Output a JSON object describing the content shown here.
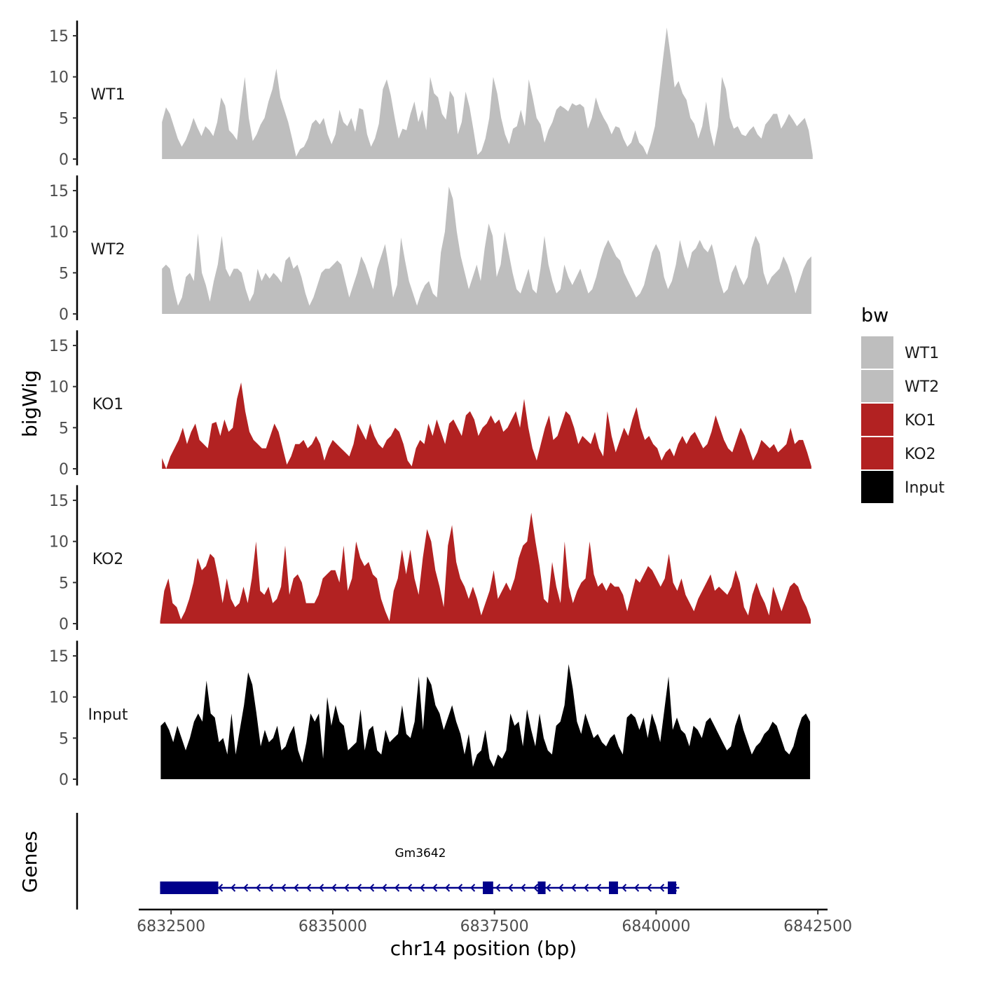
{
  "chart_data": {
    "type": "area",
    "ylabel": "bigWig",
    "xlabel": "chr14 position (bp)",
    "gene_panel_label": "Genes",
    "ylim": [
      0,
      16
    ],
    "xlim": [
      6832000,
      6842650
    ],
    "yticks": [
      0,
      5,
      10,
      15
    ],
    "xticks": [
      6832500,
      6835000,
      6837500,
      6840000,
      6842500
    ],
    "xtick_labels": [
      "6832500",
      "6835000",
      "6837500",
      "6840000",
      "6842500"
    ],
    "legend": {
      "title": "bw",
      "position": "right",
      "entries": [
        {
          "name": "WT1",
          "color": "#bebebe"
        },
        {
          "name": "WT2",
          "color": "#bebebe"
        },
        {
          "name": "KO1",
          "color": "#b22222"
        },
        {
          "name": "KO2",
          "color": "#b22222"
        },
        {
          "name": "Input",
          "color": "#000000"
        }
      ]
    },
    "series": [
      {
        "name": "WT1",
        "color": "#bebebe",
        "x_start": 6832360,
        "x_end": 6842420,
        "values": [
          4.5,
          6.3,
          5.5,
          4.0,
          2.5,
          1.5,
          2.3,
          3.5,
          5.0,
          3.8,
          2.8,
          4.0,
          3.5,
          2.8,
          4.5,
          7.5,
          6.5,
          3.5,
          3.0,
          2.3,
          6.5,
          10.0,
          5.0,
          2.2,
          3.0,
          4.2,
          5.0,
          7.0,
          8.5,
          11.0,
          7.5,
          6.0,
          4.5,
          2.5,
          0.3,
          1.2,
          1.5,
          2.5,
          4.3,
          4.8,
          4.2,
          5.0,
          3.0,
          1.8,
          3.0,
          6.0,
          4.5,
          4.0,
          5.0,
          3.3,
          6.2,
          6.0,
          3.0,
          1.5,
          2.5,
          4.3,
          8.5,
          9.7,
          7.8,
          5.0,
          2.5,
          3.7,
          3.5,
          5.5,
          7.0,
          4.5,
          6.0,
          3.5,
          10.0,
          8.0,
          7.5,
          5.5,
          4.8,
          8.3,
          7.5,
          3.0,
          4.5,
          8.2,
          6.3,
          3.5,
          0.5,
          1.0,
          2.5,
          5.0,
          10.0,
          8.0,
          5.0,
          3.0,
          1.8,
          3.7,
          4.0,
          6.0,
          4.0,
          9.7,
          7.5,
          5.0,
          4.2,
          2.0,
          3.5,
          4.5,
          6.0,
          6.5,
          6.2,
          5.8,
          6.8,
          6.5,
          6.7,
          6.3,
          3.7,
          5.0,
          7.5,
          6.0,
          5.0,
          4.2,
          3.0,
          4.0,
          3.8,
          2.5,
          1.5,
          2.0,
          3.5,
          2.0,
          1.5,
          0.5,
          2.0,
          4.0,
          8.0,
          12.0,
          16.0,
          12.5,
          8.7,
          9.5,
          8.0,
          7.2,
          5.0,
          4.3,
          2.5,
          4.0,
          7.0,
          3.5,
          1.5,
          4.0,
          10.0,
          8.5,
          5.0,
          3.7,
          4.0,
          3.0,
          2.8,
          3.5,
          4.0,
          3.0,
          2.5,
          4.2,
          4.8,
          5.5,
          5.5,
          3.7,
          4.5,
          5.5,
          4.8,
          4.0,
          4.5,
          5.0,
          3.5,
          0.5
        ]
      },
      {
        "name": "WT2",
        "color": "#bebebe",
        "x_start": 6832360,
        "x_end": 6842400,
        "values": [
          5.5,
          6.0,
          5.5,
          3.0,
          1.0,
          2.0,
          4.5,
          5.0,
          4.0,
          9.8,
          5.0,
          3.5,
          1.5,
          4.0,
          6.0,
          9.5,
          5.5,
          4.5,
          5.5,
          5.5,
          5.0,
          3.0,
          1.5,
          2.5,
          5.5,
          4.0,
          5.0,
          4.3,
          5.0,
          4.5,
          3.8,
          6.5,
          7.0,
          5.5,
          6.0,
          4.5,
          2.5,
          1.0,
          2.0,
          3.5,
          5.0,
          5.5,
          5.5,
          6.0,
          6.5,
          6.0,
          4.0,
          2.0,
          3.5,
          5.0,
          7.0,
          6.0,
          4.5,
          3.0,
          5.5,
          7.0,
          8.5,
          5.5,
          2.0,
          3.5,
          9.3,
          6.5,
          4.0,
          2.5,
          1.0,
          2.5,
          3.5,
          4.0,
          2.5,
          2.0,
          7.5,
          10.0,
          15.5,
          14.0,
          10.0,
          7.0,
          5.0,
          3.0,
          4.5,
          6.0,
          4.0,
          8.0,
          11.0,
          9.5,
          4.5,
          6.0,
          10.0,
          7.5,
          5.0,
          3.0,
          2.5,
          4.0,
          5.5,
          3.0,
          2.5,
          5.5,
          9.5,
          6.0,
          4.0,
          2.5,
          3.0,
          6.0,
          4.5,
          3.5,
          4.5,
          5.5,
          4.0,
          2.5,
          3.0,
          4.5,
          6.5,
          8.0,
          9.0,
          8.0,
          7.0,
          6.5,
          5.0,
          4.0,
          3.0,
          2.0,
          2.5,
          3.5,
          5.5,
          7.5,
          8.5,
          7.5,
          4.5,
          3.0,
          4.0,
          6.0,
          9.0,
          7.0,
          5.5,
          7.5,
          8.0,
          9.0,
          8.0,
          7.5,
          8.5,
          6.5,
          4.0,
          2.5,
          3.0,
          5.0,
          6.0,
          4.5,
          3.5,
          4.5,
          8.0,
          9.5,
          8.5,
          5.0,
          3.5,
          4.5,
          5.0,
          5.5,
          7.0,
          6.0,
          4.5,
          2.5,
          4.0,
          5.5,
          6.5,
          7.0
        ]
      },
      {
        "name": "KO1",
        "color": "#b22222",
        "x_start": 6832360,
        "x_end": 6842400,
        "values": [
          1.3,
          0.0,
          1.5,
          2.5,
          3.5,
          5.0,
          3.0,
          4.5,
          5.5,
          3.5,
          3.0,
          2.5,
          5.5,
          5.7,
          4.0,
          6.0,
          4.5,
          5.0,
          8.5,
          10.5,
          7.0,
          4.5,
          3.5,
          3.0,
          2.5,
          2.5,
          4.0,
          5.5,
          4.5,
          2.5,
          0.5,
          1.5,
          3.0,
          3.0,
          3.5,
          2.5,
          3.0,
          4.0,
          3.0,
          1.0,
          2.5,
          3.5,
          3.0,
          2.5,
          2.0,
          1.5,
          3.0,
          5.5,
          4.5,
          3.5,
          5.5,
          4.0,
          3.0,
          2.5,
          3.5,
          4.0,
          5.0,
          4.5,
          3.0,
          1.0,
          0.3,
          2.5,
          3.5,
          3.0,
          5.5,
          4.0,
          6.0,
          4.5,
          3.0,
          5.5,
          6.0,
          5.0,
          4.0,
          6.5,
          7.0,
          6.0,
          4.0,
          5.0,
          5.5,
          6.5,
          5.5,
          6.0,
          4.5,
          5.0,
          6.0,
          7.0,
          5.0,
          8.5,
          5.0,
          2.5,
          1.0,
          3.0,
          5.0,
          6.5,
          3.5,
          4.0,
          5.5,
          7.0,
          6.5,
          5.0,
          3.0,
          4.0,
          3.5,
          3.0,
          4.5,
          2.5,
          1.5,
          7.0,
          4.0,
          2.0,
          3.5,
          5.0,
          4.0,
          6.0,
          7.5,
          5.0,
          3.5,
          4.0,
          3.0,
          2.5,
          1.0,
          2.0,
          2.5,
          1.5,
          3.0,
          4.0,
          3.0,
          4.0,
          4.5,
          3.5,
          2.5,
          3.0,
          4.5,
          6.5,
          5.0,
          3.5,
          2.5,
          2.0,
          3.5,
          5.0,
          4.0,
          2.5,
          1.0,
          2.0,
          3.5,
          3.0,
          2.5,
          3.0,
          2.0,
          2.5,
          3.0,
          5.0,
          3.0,
          3.5,
          3.5,
          2.0,
          0.3
        ]
      },
      {
        "name": "KO2",
        "color": "#b22222",
        "x_start": 6832330,
        "x_end": 6842390,
        "values": [
          0.3,
          4.0,
          5.5,
          2.5,
          2.0,
          0.5,
          1.5,
          3.0,
          5.0,
          8.0,
          6.5,
          7.0,
          8.5,
          8.0,
          5.5,
          2.5,
          5.5,
          3.0,
          2.0,
          2.5,
          4.5,
          2.5,
          5.5,
          10.0,
          4.0,
          3.5,
          4.5,
          2.5,
          3.0,
          4.5,
          9.5,
          3.5,
          5.5,
          6.0,
          5.0,
          2.5,
          2.5,
          2.5,
          3.5,
          5.5,
          6.0,
          6.5,
          6.5,
          5.0,
          9.5,
          4.0,
          5.5,
          10.0,
          8.0,
          7.0,
          7.5,
          6.0,
          5.5,
          3.0,
          1.5,
          0.3,
          4.0,
          5.5,
          9.0,
          6.0,
          9.0,
          5.5,
          3.5,
          8.0,
          11.5,
          10.0,
          6.5,
          4.5,
          2.0,
          9.5,
          12.0,
          7.5,
          5.5,
          4.5,
          3.0,
          4.5,
          3.0,
          1.0,
          2.5,
          4.0,
          6.5,
          3.0,
          4.0,
          5.0,
          4.0,
          5.5,
          8.0,
          9.5,
          10.0,
          13.5,
          10.0,
          7.0,
          3.0,
          2.5,
          7.5,
          4.5,
          2.5,
          10.0,
          4.5,
          2.5,
          4.0,
          5.0,
          5.5,
          10.0,
          6.0,
          4.5,
          5.0,
          4.0,
          5.0,
          4.5,
          4.5,
          3.5,
          1.5,
          3.5,
          5.5,
          5.0,
          6.0,
          7.0,
          6.5,
          5.5,
          4.5,
          5.5,
          8.5,
          5.0,
          4.0,
          5.5,
          3.5,
          2.5,
          1.5,
          3.0,
          4.0,
          5.0,
          6.0,
          4.0,
          4.5,
          4.0,
          3.5,
          4.5,
          6.5,
          5.0,
          2.0,
          1.0,
          3.5,
          5.0,
          3.5,
          2.5,
          1.0,
          4.5,
          3.0,
          1.5,
          3.0,
          4.5,
          5.0,
          4.5,
          3.0,
          2.0,
          0.5
        ]
      },
      {
        "name": "Input",
        "color": "#000000",
        "x_start": 6832340,
        "x_end": 6842380,
        "values": [
          6.5,
          7.0,
          6.0,
          4.5,
          6.5,
          5.0,
          3.5,
          5.0,
          7.0,
          8.0,
          7.0,
          12.0,
          8.0,
          7.5,
          4.5,
          5.0,
          3.0,
          8.0,
          3.0,
          6.0,
          9.0,
          13.0,
          11.5,
          8.0,
          4.0,
          6.0,
          4.5,
          5.0,
          6.5,
          3.5,
          4.0,
          5.5,
          6.5,
          3.5,
          2.0,
          4.5,
          8.0,
          7.0,
          8.0,
          2.5,
          10.0,
          6.5,
          9.0,
          7.0,
          6.5,
          3.5,
          4.0,
          4.5,
          8.5,
          3.5,
          6.0,
          6.5,
          3.5,
          3.0,
          6.0,
          4.5,
          5.0,
          5.5,
          9.0,
          5.5,
          5.0,
          7.0,
          12.5,
          6.0,
          12.5,
          11.5,
          9.0,
          8.0,
          6.0,
          7.5,
          9.0,
          7.0,
          5.5,
          3.0,
          5.5,
          1.5,
          3.0,
          3.5,
          6.0,
          2.5,
          1.5,
          3.0,
          2.5,
          3.5,
          8.0,
          6.5,
          7.0,
          4.0,
          8.5,
          6.0,
          4.0,
          8.0,
          5.0,
          3.5,
          3.0,
          6.5,
          7.0,
          9.0,
          14.0,
          11.0,
          7.0,
          5.5,
          8.0,
          6.5,
          5.0,
          5.5,
          4.5,
          4.0,
          5.0,
          5.5,
          4.0,
          3.0,
          7.5,
          8.0,
          7.5,
          6.0,
          7.5,
          5.0,
          8.0,
          6.5,
          4.5,
          8.5,
          12.5,
          6.0,
          7.5,
          6.0,
          5.5,
          4.0,
          6.5,
          6.0,
          5.0,
          7.0,
          7.5,
          6.5,
          5.5,
          4.5,
          3.5,
          4.0,
          6.5,
          8.0,
          6.0,
          4.5,
          3.0,
          4.0,
          4.5,
          5.5,
          6.0,
          7.0,
          6.5,
          5.0,
          3.5,
          3.0,
          4.0,
          6.0,
          7.5,
          8.0,
          7.0
        ]
      }
    ],
    "genes": [
      {
        "name": "Gm3642",
        "strand": "-",
        "start": 6832330,
        "end": 6840400,
        "exons": [
          [
            6832330,
            6833230
          ],
          [
            6837320,
            6837480
          ],
          [
            6838170,
            6838290
          ],
          [
            6839270,
            6839410
          ],
          [
            6840180,
            6840310
          ]
        ]
      }
    ]
  }
}
